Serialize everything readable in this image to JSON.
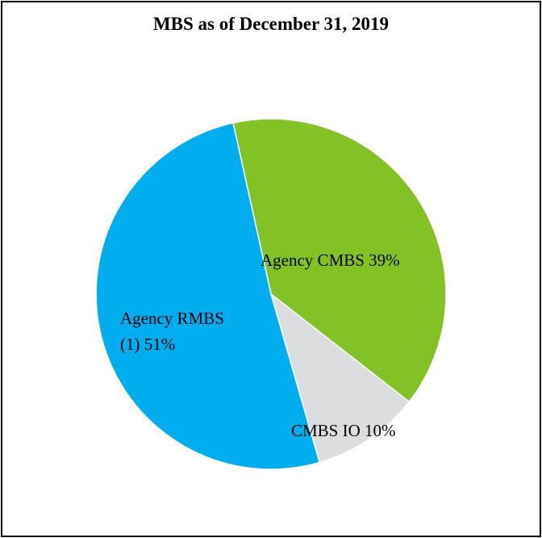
{
  "chart_data": {
    "type": "pie",
    "title": "MBS as of December 31, 2019",
    "slices": [
      {
        "label": "Agency CMBS 39%",
        "value": 39,
        "color": "#82C225"
      },
      {
        "label": "CMBS IO 10%",
        "value": 10,
        "color": "#DCDDDE"
      },
      {
        "label_lines": [
          "Agency RMBS",
          "(1) 51%"
        ],
        "value": 51,
        "color": "#00AEEF"
      }
    ]
  }
}
